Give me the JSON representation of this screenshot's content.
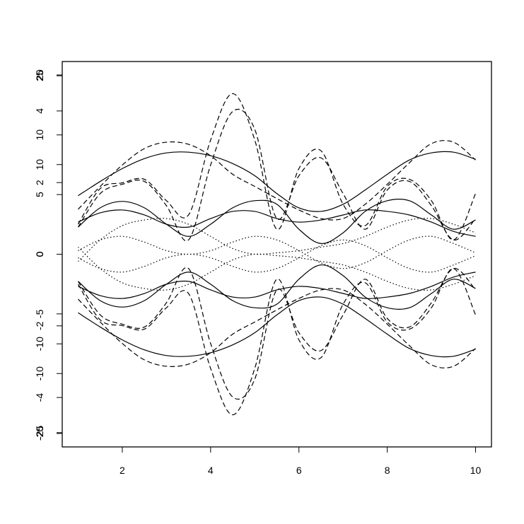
{
  "chart_data": {
    "type": "line",
    "x": [
      1,
      1.5,
      2,
      2.5,
      3,
      3.5,
      4,
      4.5,
      5,
      5.5,
      6,
      6.5,
      7,
      7.5,
      8,
      8.5,
      9,
      9.5,
      10
    ],
    "xlim": [
      0.64,
      10.36
    ],
    "xticks": [
      2,
      4,
      6,
      8,
      10
    ],
    "y_axes": [
      {
        "ylim": [
          -5.38,
          5.38
        ],
        "yticks": [
          -4,
          -2,
          0,
          2,
          4
        ]
      },
      {
        "ylim": [
          -16.15,
          16.15
        ],
        "yticks": [
          -10,
          -5,
          0,
          5,
          10
        ]
      },
      {
        "ylim": [
          -21.5,
          21.5
        ],
        "yticks": [
          -20,
          -10,
          0,
          10,
          20
        ]
      },
      {
        "ylim": [
          -27,
          27
        ],
        "yticks": [
          -25,
          0,
          25
        ]
      }
    ],
    "series": [
      {
        "axis": 3,
        "dash": "solid",
        "color": "#000000",
        "values": [
          8.2,
          10.2,
          12,
          13.4,
          14.2,
          14.3,
          13.8,
          12.7,
          11,
          8.5,
          6.5,
          6,
          7,
          9,
          11.2,
          13.2,
          14.2,
          14.3,
          13.3
        ]
      },
      {
        "axis": 3,
        "dash": "solid",
        "color": "#000000",
        "values": [
          -8.2,
          -10.2,
          -12,
          -13.4,
          -14.2,
          -14.3,
          -13.8,
          -12.7,
          -11,
          -8.5,
          -6.5,
          -6,
          -7,
          -9,
          -11.2,
          -13.2,
          -14.2,
          -14.3,
          -13.3
        ]
      },
      {
        "axis": 3,
        "dash": "dashed",
        "color": "#000000",
        "values": [
          6.3,
          9.5,
          12.5,
          14.8,
          15.7,
          15.4,
          13.8,
          11.2,
          9.5,
          7.8,
          6.2,
          5,
          5,
          7,
          9.8,
          12.8,
          15.5,
          15.7,
          13.2
        ]
      },
      {
        "axis": 3,
        "dash": "dashed",
        "color": "#000000",
        "values": [
          -6.3,
          -9.5,
          -12.5,
          -14.8,
          -15.7,
          -15.4,
          -13.8,
          -11.2,
          -9.5,
          -7.8,
          -6.2,
          -5,
          -5,
          -7,
          -9.8,
          -12.8,
          -15.5,
          -15.7,
          -13.2
        ]
      },
      {
        "axis": 3,
        "dash": "dashed",
        "color": "#000000",
        "values": [
          4.2,
          9.2,
          10,
          10.5,
          7.5,
          5.5,
          16,
          22.5,
          16,
          3.5,
          12,
          14.5,
          7,
          4,
          9.5,
          10.5,
          7.5,
          2,
          8.5
        ]
      },
      {
        "axis": 3,
        "dash": "dashed",
        "color": "#000000",
        "values": [
          -4.2,
          -9.2,
          -10,
          -10.5,
          -7.5,
          -5.5,
          -16,
          -22.5,
          -16,
          -3.5,
          -12,
          -14.5,
          -7,
          -4,
          -9.5,
          -10.5,
          -7.5,
          -2,
          -8.5
        ]
      },
      {
        "axis": 3,
        "dash": "dashed",
        "color": "#000000",
        "values": [
          3.8,
          8.5,
          9.8,
          10.2,
          6.8,
          2,
          12.5,
          20,
          17.5,
          5,
          11,
          13.5,
          8.5,
          3.5,
          9,
          10.2,
          6.8,
          2,
          5
        ]
      },
      {
        "axis": 3,
        "dash": "dashed",
        "color": "#000000",
        "values": [
          -3.8,
          -8.5,
          -9.8,
          -10.2,
          -6.8,
          -2,
          -12.5,
          -20,
          -17.5,
          -5,
          -11,
          -13.5,
          -8.5,
          -3.5,
          -9,
          -10.2,
          -6.8,
          -2,
          -5
        ]
      },
      {
        "axis": 3,
        "dash": "solid",
        "color": "#000000",
        "values": [
          3.8,
          6.5,
          7.4,
          6.5,
          4.2,
          2.5,
          4.2,
          6.5,
          7.5,
          7,
          3.5,
          1.5,
          3,
          6,
          7.5,
          7.5,
          5.5,
          3.5,
          4.8
        ]
      },
      {
        "axis": 3,
        "dash": "solid",
        "color": "#000000",
        "values": [
          -3.8,
          -6.5,
          -7.4,
          -6.5,
          -4.2,
          -2.5,
          -4.2,
          -6.5,
          -7.5,
          -7,
          -3.5,
          -1.5,
          -3,
          -6,
          -7.5,
          -7.5,
          -5.5,
          -3.5,
          -4.8
        ]
      },
      {
        "axis": 3,
        "dash": "solid",
        "color": "#000000",
        "values": [
          4.5,
          5.8,
          6.2,
          5.5,
          4.2,
          3.8,
          5,
          6,
          6,
          5,
          4.5,
          4.8,
          5.5,
          6.2,
          6,
          5.5,
          4.5,
          3.2,
          2.5
        ]
      },
      {
        "axis": 3,
        "dash": "solid",
        "color": "#000000",
        "values": [
          -4.5,
          -5.8,
          -6.2,
          -5.5,
          -4.2,
          -3.8,
          -5,
          -6,
          -6,
          -5,
          -4.5,
          -4.8,
          -5.5,
          -6.2,
          -6,
          -5.5,
          -4.5,
          -3.2,
          -2.5
        ]
      },
      {
        "axis": 3,
        "dash": "dotted",
        "color": "#000000",
        "values": [
          -1,
          2,
          4,
          4.8,
          5,
          4.2,
          2.5,
          0.8,
          0,
          0.2,
          0.5,
          1,
          1.5,
          2.5,
          3.8,
          4.8,
          5,
          4.2,
          3
        ]
      },
      {
        "axis": 3,
        "dash": "dotted",
        "color": "#000000",
        "values": [
          1,
          -2,
          -4,
          -4.8,
          -5,
          -4.2,
          -2.5,
          -0.8,
          0,
          -0.2,
          -0.5,
          -1,
          -1.5,
          -2.5,
          -3.8,
          -4.8,
          -5,
          -4.2,
          -3
        ]
      },
      {
        "axis": 3,
        "dash": "dotted",
        "color": "#000000",
        "values": [
          0.5,
          2,
          2.5,
          1.7,
          0.5,
          0,
          0.5,
          1.7,
          2.5,
          2,
          0.5,
          -1.2,
          -2,
          -1.2,
          0.5,
          2,
          2.5,
          1.5,
          0.2
        ]
      },
      {
        "axis": 3,
        "dash": "dotted",
        "color": "#000000",
        "values": [
          -0.5,
          -2,
          -2.5,
          -1.7,
          -0.5,
          0,
          -0.5,
          -1.7,
          -2.5,
          -2,
          -0.5,
          1.2,
          2,
          1.2,
          -0.5,
          -2,
          -2.5,
          -1.5,
          -0.2
        ]
      }
    ]
  }
}
